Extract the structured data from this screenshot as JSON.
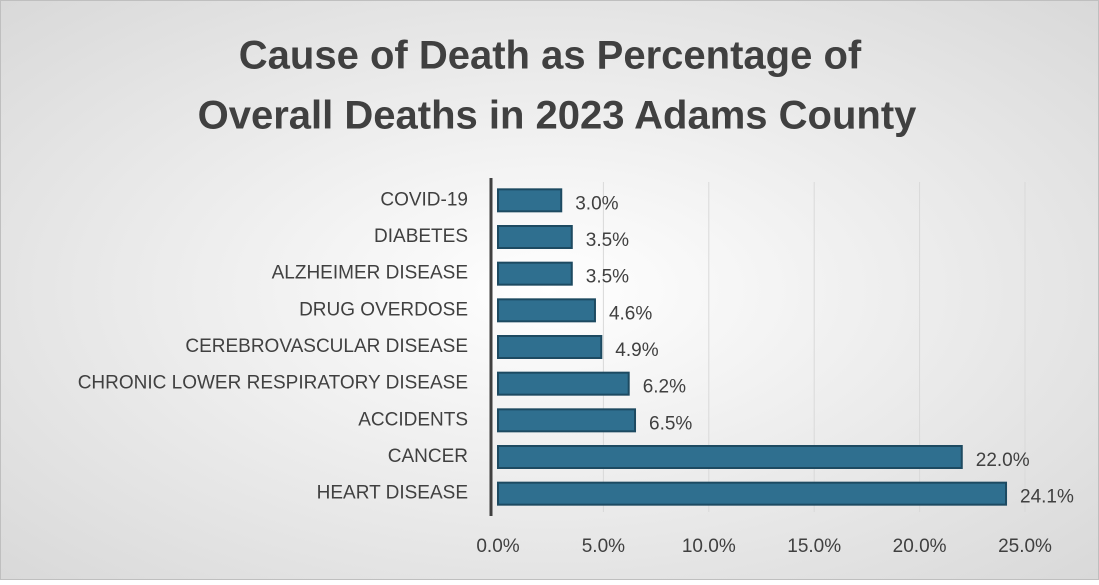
{
  "chart_data": {
    "type": "bar",
    "orientation": "horizontal",
    "title": [
      "Cause of Death as Percentage of",
      "Overall Deaths in 2023 Adams County"
    ],
    "categories": [
      "COVID-19",
      "DIABETES",
      "ALZHEIMER DISEASE",
      "DRUG OVERDOSE",
      "CEREBROVASCULAR DISEASE",
      "CHRONIC LOWER RESPIRATORY DISEASE",
      "ACCIDENTS",
      "CANCER",
      "HEART DISEASE"
    ],
    "values": [
      3.0,
      3.5,
      3.5,
      4.6,
      4.9,
      6.2,
      6.5,
      22.0,
      24.1
    ],
    "value_labels": [
      "3.0%",
      "3.5%",
      "3.5%",
      "4.6%",
      "4.9%",
      "6.2%",
      "6.5%",
      "22.0%",
      "24.1%"
    ],
    "color": "#2f6f8f",
    "xlim": [
      0,
      25
    ],
    "xticks": [
      {
        "value": 0,
        "label": "0.0%"
      },
      {
        "value": 5,
        "label": "5.0%"
      },
      {
        "value": 10,
        "label": "10.0%"
      },
      {
        "value": 15,
        "label": "15.0%"
      },
      {
        "value": 20,
        "label": "20.0%"
      },
      {
        "value": 25,
        "label": "25.0%"
      }
    ],
    "grid": true
  }
}
